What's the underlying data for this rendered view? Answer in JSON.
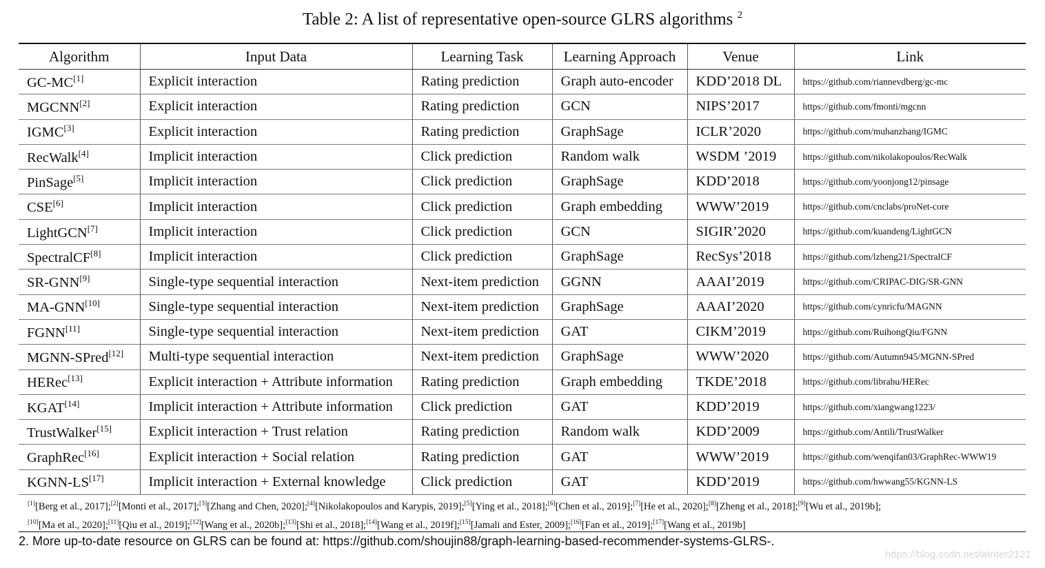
{
  "title": {
    "text": "Table 2: A list of representative open-source GLRS algorithms",
    "sup": "2"
  },
  "table": {
    "header": [
      "Algorithm",
      "Input Data",
      "Learning Task",
      "Learning Approach",
      "Venue",
      "Link"
    ],
    "rows": [
      {
        "algorithm": "GC-MC",
        "ref": "[1]",
        "input": "Explicit interaction",
        "task": "Rating prediction",
        "approach": "Graph auto-encoder",
        "venue": "KDD’2018 DL",
        "link": "https://github.com/riannevdberg/gc-mc"
      },
      {
        "algorithm": "MGCNN",
        "ref": "[2]",
        "input": "Explicit interaction",
        "task": "Rating prediction",
        "approach": "GCN",
        "venue": "NIPS’2017",
        "link": "https://github.com/fmonti/mgcnn"
      },
      {
        "algorithm": "IGMC",
        "ref": "[3]",
        "input": "Explicit interaction",
        "task": "Rating prediction",
        "approach": "GraphSage",
        "venue": "ICLR’2020",
        "link": "https://github.com/muhanzhang/IGMC"
      },
      {
        "algorithm": "RecWalk",
        "ref": "[4]",
        "input": "Implicit interaction",
        "task": "Click prediction",
        "approach": "Random walk",
        "venue": "WSDM ’2019",
        "link": "https://github.com/nikolakopoulos/RecWalk"
      },
      {
        "algorithm": "PinSage",
        "ref": "[5]",
        "input": "Implicit interaction",
        "task": "Click prediction",
        "approach": "GraphSage",
        "venue": "KDD’2018",
        "link": "https://github.com/yoonjong12/pinsage"
      },
      {
        "algorithm": "CSE",
        "ref": "[6]",
        "input": "Implicit interaction",
        "task": "Click prediction",
        "approach": "Graph embedding",
        "venue": "WWW’2019",
        "link": "https://github.com/cnclabs/proNet-core"
      },
      {
        "algorithm": "LightGCN",
        "ref": "[7]",
        "input": "Implicit interaction",
        "task": "Click prediction",
        "approach": "GCN",
        "venue": "SIGIR’2020",
        "link": "https://github.com/kuandeng/LightGCN"
      },
      {
        "algorithm": "SpectralCF",
        "ref": "[8]",
        "input": "Implicit interaction",
        "task": "Click prediction",
        "approach": "GraphSage",
        "venue": "RecSys’2018",
        "link": "https://github.com/lzheng21/SpectralCF"
      },
      {
        "algorithm": "SR-GNN",
        "ref": "[9]",
        "input": "Single-type sequential interaction",
        "task": "Next-item prediction",
        "approach": "GGNN",
        "venue": "AAAI’2019",
        "link": "https://github.com/CRIPAC-DIG/SR-GNN"
      },
      {
        "algorithm": "MA-GNN",
        "ref": "[10]",
        "input": "Single-type sequential interaction",
        "task": "Next-item prediction",
        "approach": "GraphSage",
        "venue": "AAAI’2020",
        "link": "https://github.com/cynricfu/MAGNN"
      },
      {
        "algorithm": "FGNN",
        "ref": "[11]",
        "input": "Single-type sequential interaction",
        "task": "Next-item prediction",
        "approach": "GAT",
        "venue": "CIKM’2019",
        "link": "https://github.com/RuihongQiu/FGNN"
      },
      {
        "algorithm": "MGNN-SPred",
        "ref": "[12]",
        "input": "Multi-type sequential interaction",
        "task": "Next-item prediction",
        "approach": "GraphSage",
        "venue": "WWW’2020",
        "link": "https://github.com/Autumn945/MGNN-SPred"
      },
      {
        "algorithm": "HERec",
        "ref": "[13]",
        "input": "Explicit interaction + Attribute information",
        "task": "Rating prediction",
        "approach": "Graph embedding",
        "venue": "TKDE’2018",
        "link": "https://github.com/librahu/HERec"
      },
      {
        "algorithm": "KGAT",
        "ref": "[14]",
        "input": "Implicit interaction + Attribute information",
        "task": "Click prediction",
        "approach": "GAT",
        "venue": "KDD’2019",
        "link": "https://github.com/xiangwang1223/"
      },
      {
        "algorithm": "TrustWalker",
        "ref": "[15]",
        "input": "Explicit interaction + Trust relation",
        "task": "Rating prediction",
        "approach": "Random walk",
        "venue": "KDD’2009",
        "link": "https://github.com/Antili/TrustWalker"
      },
      {
        "algorithm": "GraphRec",
        "ref": "[16]",
        "input": "Explicit interaction + Social relation",
        "task": "Rating prediction",
        "approach": "GAT",
        "venue": "WWW’2019",
        "link": "https://github.com/wenqifan03/GraphRec-WWW19"
      },
      {
        "algorithm": "KGNN-LS",
        "ref": "[17]",
        "input": "Implicit interaction + External knowledge",
        "task": "Click prediction",
        "approach": "GAT",
        "venue": "KDD’2019",
        "link": "https://github.com/hwwang55/KGNN-LS"
      }
    ]
  },
  "footnotes": {
    "lines": [
      [
        {
          "mark": "[1]",
          "text": "[Berg et al., 2017];"
        },
        {
          "mark": "[2]",
          "text": "[Monti et al., 2017];"
        },
        {
          "mark": "[3]",
          "text": "[Zhang and Chen, 2020];"
        },
        {
          "mark": "[4]",
          "text": "[Nikolakopoulos and Karypis, 2019];"
        },
        {
          "mark": "[5]",
          "text": "[Ying et al., 2018];"
        },
        {
          "mark": "[6]",
          "text": "[Chen et al., 2019];"
        },
        {
          "mark": "[7]",
          "text": "[He et al., 2020];"
        },
        {
          "mark": "[8]",
          "text": "[Zheng et al., 2018];"
        },
        {
          "mark": "[9]",
          "text": "[Wu et al., 2019b];"
        }
      ],
      [
        {
          "mark": "[10]",
          "text": "[Ma et al., 2020];"
        },
        {
          "mark": "[11]",
          "text": "[Qiu et al., 2019];"
        },
        {
          "mark": "[12]",
          "text": "[Wang et al., 2020b];"
        },
        {
          "mark": "[13]",
          "text": "[Shi et al., 2018];"
        },
        {
          "mark": "[14]",
          "text": "[Wang et al., 2019f];"
        },
        {
          "mark": "[15]",
          "text": "[Jamali and Ester, 2009];"
        },
        {
          "mark": "[16]",
          "text": "[Fan et al., 2019];"
        },
        {
          "mark": "[17]",
          "text": "[Wang et al., 2019b]"
        }
      ]
    ]
  },
  "note": "2. More up-to-date resource on GLRS can be found at: https://github.com/shoujin88/graph-learning-based-recommender-systems-GLRS-.",
  "watermark": "https://blog.csdn.net/winter2121"
}
